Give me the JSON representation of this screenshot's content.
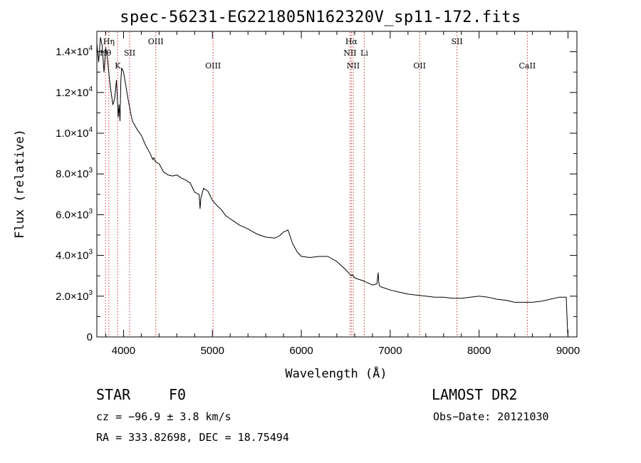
{
  "chart_data": {
    "type": "line",
    "title": "spec-56231-EG221805N162320V_sp11-172.fits",
    "xlabel": "Wavelength (Å)",
    "ylabel": "Flux (relative)",
    "xlim": [
      3700,
      9100
    ],
    "ylim": [
      0,
      15000
    ],
    "x_ticks": [
      {
        "value": 4000,
        "label": "4000"
      },
      {
        "value": 5000,
        "label": "5000"
      },
      {
        "value": 6000,
        "label": "6000"
      },
      {
        "value": 7000,
        "label": "7000"
      },
      {
        "value": 8000,
        "label": "8000"
      },
      {
        "value": 9000,
        "label": "9000"
      }
    ],
    "y_ticks": [
      {
        "value": 0,
        "mant": "0",
        "exp": ""
      },
      {
        "value": 2000,
        "mant": "2.0×10",
        "exp": "3"
      },
      {
        "value": 4000,
        "mant": "4.0×10",
        "exp": "3"
      },
      {
        "value": 6000,
        "mant": "6.0×10",
        "exp": "3"
      },
      {
        "value": 8000,
        "mant": "8.0×10",
        "exp": "3"
      },
      {
        "value": 10000,
        "mant": "1.0×10",
        "exp": "4"
      },
      {
        "value": 12000,
        "mant": "1.2×10",
        "exp": "4"
      },
      {
        "value": 14000,
        "mant": "1.4×10",
        "exp": "4"
      }
    ],
    "line_color": "#000000",
    "line_marker_color": "#d03030",
    "spectral_lines": [
      {
        "label": "Hη",
        "wavelength": 3835,
        "row": 1
      },
      {
        "label": "Hθ",
        "wavelength": 3797,
        "row": 2
      },
      {
        "label": "K",
        "wavelength": 3934,
        "row": 3
      },
      {
        "label": "SII",
        "wavelength": 4069,
        "row": 2
      },
      {
        "label": "OIII",
        "wavelength": 4363,
        "row": 1
      },
      {
        "label": "OIII",
        "wavelength": 5007,
        "row": 3
      },
      {
        "label": "Hα",
        "wavelength": 6563,
        "row": 1
      },
      {
        "label": "NII",
        "wavelength": 6548,
        "row": 2
      },
      {
        "label": "Li",
        "wavelength": 6708,
        "row": 2
      },
      {
        "label": "NII",
        "wavelength": 6584,
        "row": 3
      },
      {
        "label": "OII",
        "wavelength": 7330,
        "row": 3
      },
      {
        "label": "SII",
        "wavelength": 7751,
        "row": 1
      },
      {
        "label": "CaII",
        "wavelength": 8542,
        "row": 3
      }
    ],
    "series": [
      {
        "x": [
          3700,
          3720,
          3740,
          3760,
          3780,
          3800,
          3820,
          3840,
          3860,
          3880,
          3900,
          3920,
          3940,
          3950,
          3960,
          3970,
          3980,
          4000,
          4020,
          4050,
          4080,
          4100,
          4150,
          4200,
          4250,
          4300,
          4330,
          4340,
          4360,
          4400,
          4450,
          4500,
          4550,
          4600,
          4650,
          4700,
          4750,
          4800,
          4850,
          4861,
          4870,
          4900,
          4950,
          5000,
          5050,
          5100,
          5150,
          5200,
          5250,
          5300,
          5400,
          5500,
          5600,
          5700,
          5750,
          5800,
          5850,
          5900,
          5950,
          6000,
          6100,
          6200,
          6300,
          6400,
          6500,
          6550,
          6563,
          6575,
          6600,
          6700,
          6800,
          6850,
          6865,
          6870,
          6880,
          6900,
          7000,
          7100,
          7200,
          7300,
          7400,
          7500,
          7600,
          7700,
          7800,
          7900,
          8000,
          8100,
          8200,
          8300,
          8400,
          8500,
          8600,
          8700,
          8800,
          8900,
          8980,
          8995,
          9000
        ],
        "y": [
          14400,
          13500,
          14700,
          14300,
          13000,
          14200,
          13600,
          12700,
          12000,
          11400,
          11700,
          12600,
          10800,
          11400,
          10600,
          12600,
          13200,
          13000,
          12500,
          11700,
          11000,
          10600,
          10200,
          9900,
          9400,
          9000,
          8700,
          8800,
          8600,
          8500,
          8100,
          7950,
          7900,
          7950,
          7800,
          7700,
          7550,
          7100,
          7000,
          6300,
          6800,
          7300,
          7150,
          6700,
          6450,
          6250,
          5950,
          5800,
          5650,
          5500,
          5300,
          5050,
          4900,
          4850,
          4950,
          5150,
          5250,
          4600,
          4200,
          3950,
          3900,
          3950,
          3950,
          3700,
          3300,
          3050,
          3000,
          3050,
          2900,
          2750,
          2550,
          2600,
          3150,
          2700,
          2500,
          2450,
          2300,
          2200,
          2100,
          2050,
          2000,
          1950,
          1950,
          1900,
          1900,
          1950,
          2000,
          1950,
          1850,
          1800,
          1700,
          1700,
          1700,
          1750,
          1850,
          1950,
          1950,
          300,
          0
        ]
      }
    ]
  },
  "info": {
    "object": "STAR",
    "subclass": "F0",
    "survey": "LAMOST DR2",
    "cz": "cz = −96.9 ± 3.8 km/s",
    "obs_date": "Obs−Date: 20121030",
    "coords": "RA = 333.82698, DEC =  18.75494"
  }
}
